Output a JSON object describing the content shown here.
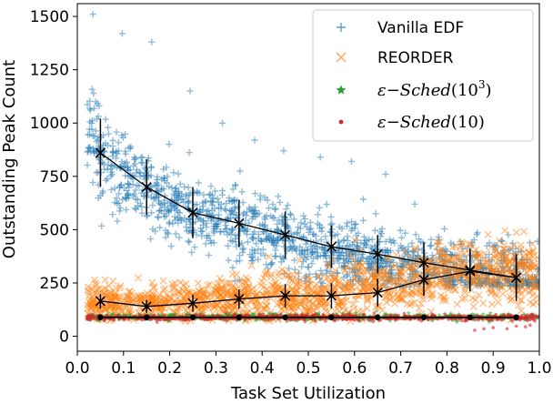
{
  "colors": {
    "vanilla": "#1f77b4",
    "reorder": "#ff7f0e",
    "sched1000": "#2ca02c",
    "sched10": "#d62728",
    "mean_line": "#000000"
  },
  "chart_data": {
    "type": "scatter",
    "xlabel": "Task Set Utilization",
    "ylabel": "Outstanding Peak Count",
    "xlim": [
      0.0,
      1.0
    ],
    "ylim": [
      -70,
      1560
    ],
    "xticks": [
      0.0,
      0.1,
      0.2,
      0.3,
      0.4,
      0.5,
      0.6,
      0.7,
      0.8,
      0.9,
      1.0
    ],
    "xtick_labels": [
      "0.0",
      "0.1",
      "0.2",
      "0.3",
      "0.4",
      "0.5",
      "0.6",
      "0.7",
      "0.8",
      "0.9",
      "1.0"
    ],
    "yticks": [
      0,
      250,
      500,
      750,
      1000,
      1250,
      1500
    ],
    "ytick_labels": [
      "0",
      "250",
      "500",
      "750",
      "1000",
      "1250",
      "1500"
    ],
    "grid": false,
    "legend_position": "top-right",
    "legend": [
      {
        "marker": "plus",
        "color": "#1f77b4",
        "text": "Vanilla EDF"
      },
      {
        "marker": "cross",
        "color": "#ff7f0e",
        "text": "REORDER"
      },
      {
        "marker": "star",
        "color": "#2ca02c",
        "base": "ε−Sched",
        "exponent_base": "10",
        "exponent": "3"
      },
      {
        "marker": "dot",
        "color": "#d62728",
        "base": "ε−Sched",
        "arg": "10"
      }
    ],
    "series": [
      {
        "name": "Vanilla EDF",
        "marker": "plus",
        "color": "#1f77b4",
        "scatter_envelope": {
          "x": [
            0.02,
            0.05,
            0.1,
            0.15,
            0.2,
            0.3,
            0.4,
            0.5,
            0.6,
            0.7,
            0.8,
            0.9,
            0.96,
            1.0
          ],
          "center": [
            1000,
            870,
            760,
            690,
            620,
            540,
            480,
            420,
            380,
            340,
            310,
            280,
            265,
            255
          ],
          "spread": [
            190,
            190,
            180,
            170,
            160,
            150,
            145,
            140,
            140,
            140,
            140,
            150,
            160,
            160
          ],
          "y_max_points": [
            1510,
            1420,
            1380,
            1150,
            1000,
            920,
            870,
            840,
            820,
            760,
            620
          ]
        },
        "mean": [
          {
            "x": 0.05,
            "y": 860,
            "err": 160
          },
          {
            "x": 0.15,
            "y": 700,
            "err": 130
          },
          {
            "x": 0.25,
            "y": 580,
            "err": 120
          },
          {
            "x": 0.35,
            "y": 530,
            "err": 110
          },
          {
            "x": 0.45,
            "y": 475,
            "err": 110
          },
          {
            "x": 0.55,
            "y": 420,
            "err": 100
          },
          {
            "x": 0.65,
            "y": 385,
            "err": 90
          },
          {
            "x": 0.75,
            "y": 345,
            "err": 95
          },
          {
            "x": 0.85,
            "y": 310,
            "err": 100
          },
          {
            "x": 0.95,
            "y": 275,
            "err": 110
          }
        ]
      },
      {
        "name": "REORDER",
        "marker": "cross",
        "color": "#ff7f0e",
        "scatter_envelope": {
          "x": [
            0.02,
            0.1,
            0.2,
            0.3,
            0.4,
            0.5,
            0.6,
            0.7,
            0.8,
            0.9,
            1.0
          ],
          "center": [
            165,
            150,
            155,
            170,
            185,
            195,
            215,
            255,
            300,
            295,
            280
          ],
          "spread": [
            80,
            75,
            80,
            90,
            100,
            110,
            120,
            140,
            150,
            150,
            140
          ]
        },
        "mean": [
          {
            "x": 0.05,
            "y": 165,
            "err": 35
          },
          {
            "x": 0.15,
            "y": 140,
            "err": 30
          },
          {
            "x": 0.25,
            "y": 155,
            "err": 40
          },
          {
            "x": 0.35,
            "y": 175,
            "err": 45
          },
          {
            "x": 0.45,
            "y": 190,
            "err": 55
          },
          {
            "x": 0.55,
            "y": 190,
            "err": 60
          },
          {
            "x": 0.65,
            "y": 205,
            "err": 65
          },
          {
            "x": 0.75,
            "y": 265,
            "err": 75
          },
          {
            "x": 0.85,
            "y": 305,
            "err": 85
          },
          {
            "x": 0.95,
            "y": 275,
            "err": 95
          }
        ]
      },
      {
        "name": "ε−Sched(10^3)",
        "marker": "star",
        "color": "#2ca02c",
        "scatter_envelope": {
          "x_range": [
            0.02,
            1.0
          ],
          "center": 90,
          "spread": 15
        },
        "mean": [
          {
            "x": 0.05,
            "y": 90
          },
          {
            "x": 0.15,
            "y": 90
          },
          {
            "x": 0.25,
            "y": 90
          },
          {
            "x": 0.35,
            "y": 90
          },
          {
            "x": 0.45,
            "y": 90
          },
          {
            "x": 0.55,
            "y": 90
          },
          {
            "x": 0.65,
            "y": 90
          },
          {
            "x": 0.75,
            "y": 90
          },
          {
            "x": 0.85,
            "y": 90
          },
          {
            "x": 0.95,
            "y": 90
          }
        ]
      },
      {
        "name": "ε−Sched(10)",
        "marker": "dot",
        "color": "#d62728",
        "scatter_envelope": {
          "x_range": [
            0.02,
            1.0
          ],
          "center": 88,
          "spread": 14,
          "outliers_y": [
            20,
            55
          ]
        },
        "mean": [
          {
            "x": 0.05,
            "y": 88
          },
          {
            "x": 0.15,
            "y": 88
          },
          {
            "x": 0.25,
            "y": 88
          },
          {
            "x": 0.35,
            "y": 88
          },
          {
            "x": 0.45,
            "y": 88
          },
          {
            "x": 0.55,
            "y": 88
          },
          {
            "x": 0.65,
            "y": 88
          },
          {
            "x": 0.75,
            "y": 88
          },
          {
            "x": 0.85,
            "y": 88
          },
          {
            "x": 0.95,
            "y": 88
          }
        ]
      }
    ]
  }
}
